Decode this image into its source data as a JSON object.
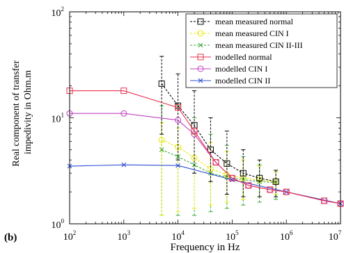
{
  "panel_label": "(b)",
  "chart_data": {
    "type": "line",
    "xscale": "log",
    "yscale": "log",
    "xlim": [
      100,
      10000000
    ],
    "ylim": [
      1,
      100
    ],
    "xlabel": "Frequency in Hz",
    "ylabel_lines": [
      "Real component of transfer",
      "impedivity in Ohm.m"
    ],
    "x_ticks": [
      {
        "base": "10",
        "exp": "2",
        "value": 100
      },
      {
        "base": "10",
        "exp": "3",
        "value": 1000
      },
      {
        "base": "10",
        "exp": "4",
        "value": 10000
      },
      {
        "base": "10",
        "exp": "5",
        "value": 100000
      },
      {
        "base": "10",
        "exp": "6",
        "value": 1000000
      },
      {
        "base": "10",
        "exp": "7",
        "value": 10000000
      }
    ],
    "y_ticks": [
      {
        "base": "10",
        "exp": "0",
        "value": 1
      },
      {
        "base": "10",
        "exp": "1",
        "value": 10
      },
      {
        "base": "10",
        "exp": "2",
        "value": 100
      }
    ],
    "legend_position": "top-right",
    "series": [
      {
        "name": "mean measured normal",
        "color": "#000000",
        "dash": "3,2",
        "marker": "square",
        "x": [
          5000,
          10000,
          20000,
          40000,
          80000,
          160000,
          320000,
          640000
        ],
        "y": [
          21,
          13,
          8.5,
          5.0,
          3.7,
          3.0,
          2.7,
          2.5
        ],
        "err_low": [
          7,
          4,
          3,
          2.5,
          1.9,
          1.8,
          1.8,
          1.8
        ],
        "err_high": [
          38,
          26,
          18,
          10,
          7.5,
          5.0,
          4.0,
          3.2
        ]
      },
      {
        "name": "mean measured CIN I",
        "color": "#e8e800",
        "dash": "3,2",
        "marker": "circle",
        "x": [
          5000,
          10000,
          20000,
          40000,
          80000,
          160000,
          320000,
          640000
        ],
        "y": [
          6.2,
          5.3,
          4.2,
          3.3,
          2.9,
          2.7,
          2.6,
          2.5
        ],
        "err_low": [
          1.2,
          1.3,
          1.4,
          1.5,
          1.6,
          1.7,
          1.8,
          1.9
        ],
        "err_high": [
          9,
          8,
          7,
          5.8,
          4.8,
          4.0,
          3.5,
          3.1
        ]
      },
      {
        "name": "mean measured CIN II-III",
        "color": "#3aa83a",
        "dash": "3,2",
        "marker": "x",
        "x": [
          5000,
          10000,
          20000,
          40000,
          80000,
          160000,
          320000,
          640000
        ],
        "y": [
          5.0,
          4.3,
          3.6,
          3.0,
          2.75,
          2.6,
          2.5,
          2.45
        ],
        "err_low": [
          1.2,
          1.2,
          1.2,
          1.3,
          1.4,
          1.5,
          1.6,
          1.7
        ],
        "err_high": [
          13,
          13,
          10,
          7,
          5.5,
          4.3,
          3.6,
          3.1
        ]
      },
      {
        "name": "modelled normal",
        "color": "#e8324e",
        "dash": "",
        "marker": "square",
        "x": [
          100,
          1000,
          10000,
          20000,
          50000,
          100000,
          200000,
          500000,
          1000000,
          5000000,
          10000000
        ],
        "y": [
          18,
          18,
          12.5,
          7.5,
          3.8,
          2.7,
          2.3,
          2.1,
          2.0,
          1.65,
          1.55
        ]
      },
      {
        "name": "modelled CIN I",
        "color": "#c040c0",
        "dash": "",
        "marker": "circle",
        "x": [
          100,
          1000,
          10000,
          20000,
          50000,
          100000,
          200000,
          500000,
          1000000,
          5000000,
          10000000
        ],
        "y": [
          11,
          11,
          9.5,
          7.0,
          3.8,
          2.7,
          2.3,
          2.1,
          2.0,
          1.65,
          1.55
        ]
      },
      {
        "name": "modelled CIN II",
        "color": "#2f4fd0",
        "dash": "",
        "marker": "x",
        "x": [
          100,
          1000,
          10000,
          100000,
          1000000,
          10000000
        ],
        "y": [
          3.5,
          3.6,
          3.55,
          2.6,
          2.0,
          1.55
        ]
      }
    ]
  }
}
